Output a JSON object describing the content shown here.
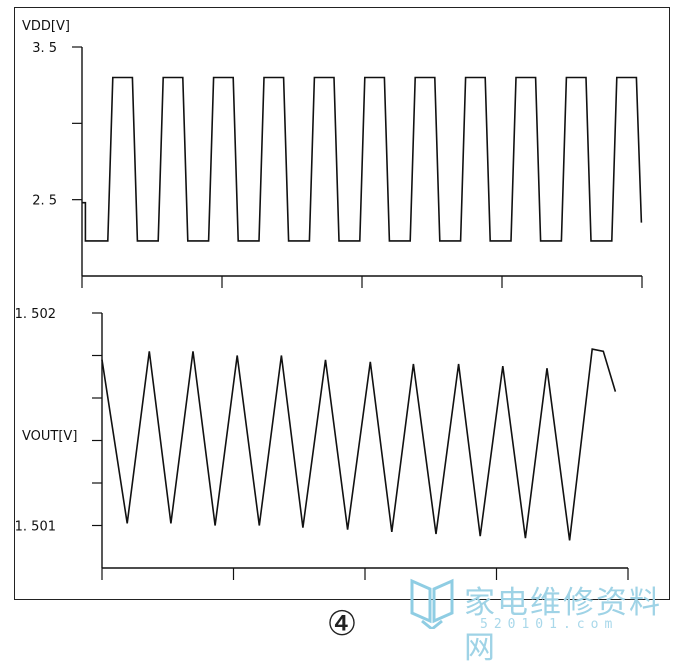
{
  "figure": {
    "caption": "④",
    "watermark": {
      "text": "家电维修资料网",
      "url": "520101.com",
      "color": "#9fd3e6"
    }
  },
  "chart_data": [
    {
      "type": "line",
      "ylabel": "VDD[V]",
      "ytick_labels": [
        {
          "value": 3.5,
          "label": "3. 5"
        },
        {
          "value": 2.5,
          "label": "2. 5"
        }
      ],
      "yminor_ticks": [
        3.0
      ],
      "ylim": [
        2.0,
        3.5
      ],
      "xlim": [
        0,
        10
      ],
      "xticks": [
        0,
        2.5,
        5,
        7.5,
        10
      ],
      "grid": false,
      "series": [
        {
          "x": [
            0,
            0.06,
            0.06,
            0.46,
            0.55,
            0.9,
            0.99,
            1.36,
            1.45,
            1.8,
            1.89,
            2.26,
            2.35,
            2.7,
            2.79,
            3.16,
            3.25,
            3.6,
            3.69,
            4.06,
            4.15,
            4.5,
            4.59,
            4.96,
            5.05,
            5.4,
            5.49,
            5.86,
            5.95,
            6.3,
            6.39,
            6.76,
            6.85,
            7.2,
            7.29,
            7.66,
            7.75,
            8.1,
            8.19,
            8.56,
            8.65,
            9.0,
            9.09,
            9.46,
            9.55,
            9.9,
            9.99
          ],
          "y": [
            2.48,
            2.48,
            2.23,
            2.23,
            3.3,
            3.3,
            2.23,
            2.23,
            3.3,
            3.3,
            2.23,
            2.23,
            3.3,
            3.3,
            2.23,
            2.23,
            3.3,
            3.3,
            2.23,
            2.23,
            3.3,
            3.3,
            2.23,
            2.23,
            3.3,
            3.3,
            2.23,
            2.23,
            3.3,
            3.3,
            2.23,
            2.23,
            3.3,
            3.3,
            2.23,
            2.23,
            3.3,
            3.3,
            2.23,
            2.23,
            3.3,
            3.3,
            2.23,
            2.23,
            3.3,
            3.3,
            2.35
          ]
        }
      ]
    },
    {
      "type": "line",
      "ylabel": "VOUT[V]",
      "ytick_labels": [
        {
          "value": 1.502,
          "label": "1. 502"
        },
        {
          "value": 1.501,
          "label": "1. 501"
        }
      ],
      "yminor_ticks": [
        1.5018,
        1.5016,
        1.5014,
        1.5012
      ],
      "ylim": [
        1.5008,
        1.502
      ],
      "xlim": [
        0,
        10
      ],
      "xticks": [
        0,
        2.5,
        5,
        7.5,
        10
      ],
      "grid": false,
      "series": [
        {
          "x": [
            0,
            0.48,
            0.9,
            1.31,
            1.73,
            2.15,
            2.57,
            2.99,
            3.41,
            3.82,
            4.25,
            4.67,
            5.1,
            5.51,
            5.92,
            6.35,
            6.78,
            7.19,
            7.62,
            8.05,
            8.46,
            8.89,
            9.32,
            9.53,
            9.76
          ],
          "y": [
            1.50178,
            1.50101,
            1.50182,
            1.50101,
            1.50182,
            1.501,
            1.5018,
            1.501,
            1.5018,
            1.50099,
            1.50178,
            1.50098,
            1.50177,
            1.50097,
            1.50176,
            1.50096,
            1.50176,
            1.50095,
            1.50175,
            1.50094,
            1.50174,
            1.50093,
            1.50183,
            1.50182,
            1.50163
          ]
        }
      ]
    }
  ]
}
